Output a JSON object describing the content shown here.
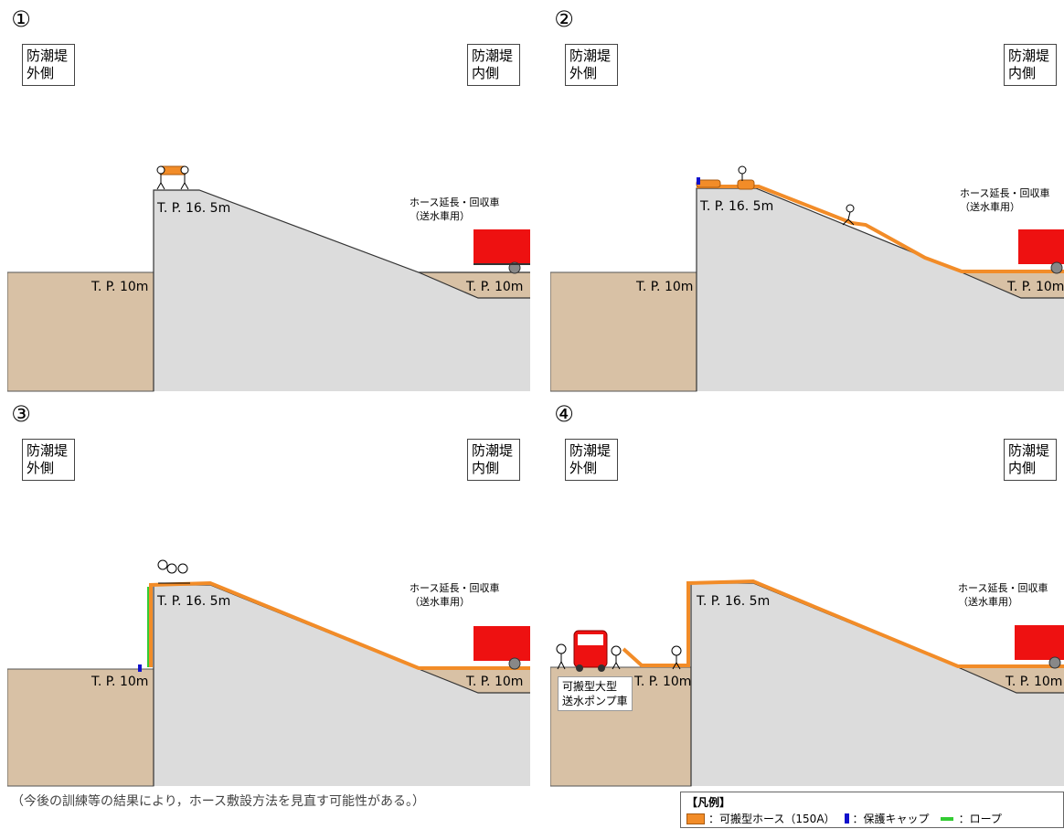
{
  "panels": [
    {
      "number": "①",
      "outer_label": "防潮堤\n外側",
      "inner_label": "防潮堤\n内側",
      "top_level": "T. P. 16. 5m",
      "low_level_left": "T. P. 10m",
      "low_level_right": "T. P. 10m",
      "truck_label": "ホース延長・回収車\n（送水車用）"
    },
    {
      "number": "②",
      "outer_label": "防潮堤\n外側",
      "inner_label": "防潮堤\n内側",
      "top_level": "T. P. 16. 5m",
      "low_level_left": "T. P. 10m",
      "low_level_right": "T. P. 10m",
      "truck_label": "ホース延長・回収車\n（送水車用）"
    },
    {
      "number": "③",
      "outer_label": "防潮堤\n外側",
      "inner_label": "防潮堤\n内側",
      "top_level": "T. P. 16. 5m",
      "low_level_left": "T. P. 10m",
      "low_level_right": "T. P. 10m",
      "truck_label": "ホース延長・回収車\n（送水車用）"
    },
    {
      "number": "④",
      "outer_label": "防潮堤\n外側",
      "inner_label": "防潮堤\n内側",
      "top_level": "T. P. 16. 5m",
      "low_level_left": "T. P. 10m",
      "low_level_right": "T. P. 10m",
      "truck_label": "ホース延長・回収車\n（送水車用）",
      "pump_label": "可搬型大型\n送水ポンプ車"
    }
  ],
  "note": "（今後の訓練等の結果により，ホース敷設方法を見直す可能性がある。）",
  "legend": {
    "title": "【凡例】",
    "hose": "可搬型ホース（150A）",
    "cap": "保護キャップ",
    "rope": "ロープ",
    "separator": "："
  },
  "colors": {
    "ground": "#d8c1a5",
    "embankment": "#dcdcdc",
    "hose": "#f28c28",
    "truck": "#ee1111",
    "cap": "#1111cc",
    "rope": "#33cc33"
  }
}
